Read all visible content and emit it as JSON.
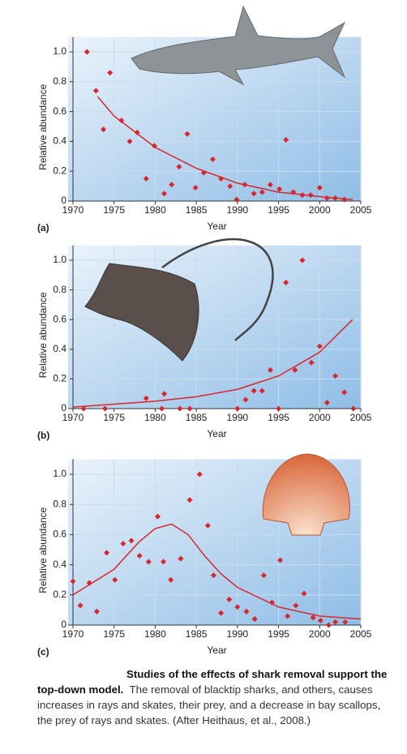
{
  "chart_data": [
    {
      "type": "scatter",
      "panel_label": "(a)",
      "xlabel": "Year",
      "ylabel": "Relative abundance",
      "color": "#d9262c",
      "grid": true,
      "xlim": [
        1970,
        2005
      ],
      "xticks": [
        1970,
        1975,
        1980,
        1985,
        1990,
        1995,
        2000,
        2005
      ],
      "ylim": [
        0,
        1.1
      ],
      "yticks": [
        0,
        0.2,
        0.4,
        0.6,
        0.8,
        {
          "value": 1,
          "label": "1.0"
        }
      ],
      "points": {
        "x": [
          1971.7,
          1972.8,
          1974.5,
          1973.7,
          1975.9,
          1976.9,
          1977.8,
          1978.9,
          1979.9,
          1981.1,
          1982,
          1982.9,
          1983.9,
          1984.9,
          1985.9,
          1987,
          1988,
          1989.1,
          1989.9,
          1990.9,
          1992,
          1993,
          1994,
          1995.1,
          1995.9,
          1996.8,
          1997.9,
          1998.9,
          2000,
          2000.9,
          2001.9,
          2003
        ],
        "y": [
          1.0,
          0.74,
          0.86,
          0.48,
          0.54,
          0.4,
          0.46,
          0.15,
          0.37,
          0.05,
          0.11,
          0.23,
          0.45,
          0.09,
          0.19,
          0.28,
          0.15,
          0.1,
          0.01,
          0.11,
          0.05,
          0.06,
          0.11,
          0.08,
          0.41,
          0.06,
          0.04,
          0.04,
          0.09,
          0.02,
          0.02,
          0.01
        ]
      },
      "fit": {
        "x": [
          1973,
          1975,
          1980,
          1985,
          1990,
          1995,
          2000,
          2004
        ],
        "y": [
          0.7,
          0.57,
          0.36,
          0.22,
          0.12,
          0.06,
          0.03,
          0.01
        ]
      }
    },
    {
      "type": "scatter",
      "panel_label": "(b)",
      "xlabel": "Year",
      "ylabel": "Relative abundance",
      "color": "#d9262c",
      "grid": true,
      "xlim": [
        1970,
        2005
      ],
      "xticks": [
        1970,
        1975,
        1980,
        1985,
        1990,
        1995,
        2000,
        2005
      ],
      "ylim": [
        0,
        1.1
      ],
      "yticks": [
        0,
        0.2,
        0.4,
        0.6,
        0.8,
        {
          "value": 1,
          "label": "1.0"
        }
      ],
      "points": {
        "x": [
          1971.3,
          1973.9,
          1978.9,
          1980.8,
          1981.1,
          1983,
          1984.2,
          1990,
          1991,
          1992,
          1993,
          1994,
          1995,
          1995.9,
          1997,
          1997.9,
          1999,
          2000,
          2000.9,
          2001.9,
          2003,
          2004.1
        ],
        "y": [
          0,
          0,
          0.07,
          0,
          0.1,
          0,
          0,
          0,
          0.06,
          0.12,
          0.12,
          0.26,
          0,
          0.85,
          0.26,
          1.0,
          0.31,
          0.42,
          0.04,
          0.22,
          0.11,
          0
        ]
      },
      "fit": {
        "x": [
          1970,
          1975,
          1980,
          1985,
          1990,
          1995,
          2000,
          2004
        ],
        "y": [
          0.01,
          0.03,
          0.05,
          0.08,
          0.13,
          0.22,
          0.38,
          0.6
        ]
      }
    },
    {
      "type": "scatter",
      "panel_label": "(c)",
      "xlabel": "Year",
      "ylabel": "Relative abundance",
      "color": "#d9262c",
      "grid": true,
      "xlim": [
        1970,
        2005
      ],
      "xticks": [
        1970,
        1975,
        1980,
        1985,
        1990,
        1995,
        2000,
        2005
      ],
      "ylim": [
        0,
        1.1
      ],
      "yticks": [
        0,
        0.2,
        0.4,
        0.6,
        0.8,
        {
          "value": 1,
          "label": "1.0"
        }
      ],
      "points": {
        "x": [
          1970,
          1970.9,
          1972,
          1972.9,
          1974.1,
          1975.1,
          1976.1,
          1977.1,
          1978.1,
          1979.2,
          1980.3,
          1981,
          1981.9,
          1983.1,
          1984.2,
          1985.4,
          1986.4,
          1987.1,
          1988,
          1989,
          1990,
          1991.1,
          1992.1,
          1993.2,
          1994.2,
          1995.2,
          1996.1,
          1997.1,
          1998.1,
          1999.2,
          2000.1,
          2001.1,
          2001.9,
          2003.1
        ],
        "y": [
          0.29,
          0.13,
          0.28,
          0.09,
          0.48,
          0.3,
          0.54,
          0.56,
          0.46,
          0.42,
          0.72,
          0.42,
          0.3,
          0.44,
          0.83,
          1.0,
          0.66,
          0.33,
          0.08,
          0.17,
          0.12,
          0.09,
          0.04,
          0.33,
          0.15,
          0.43,
          0.06,
          0.13,
          0.21,
          0.05,
          0.03,
          0,
          0.02,
          0.02
        ]
      },
      "fit": {
        "x": [
          1970,
          1975,
          1978,
          1980,
          1982,
          1984,
          1986,
          1988,
          1990,
          1995,
          2000,
          2005
        ],
        "y": [
          0.2,
          0.37,
          0.55,
          0.64,
          0.67,
          0.6,
          0.46,
          0.34,
          0.25,
          0.12,
          0.06,
          0.04
        ]
      }
    }
  ],
  "caption": {
    "title": "Studies of the effects of shark removal support the top-down model.",
    "body": "The removal of blacktip sharks, and others, causes increases in rays and skates, their prey, and a decrease in bay scallops, the prey of rays and skates. (After Heithaus, et al., 2008.)"
  }
}
